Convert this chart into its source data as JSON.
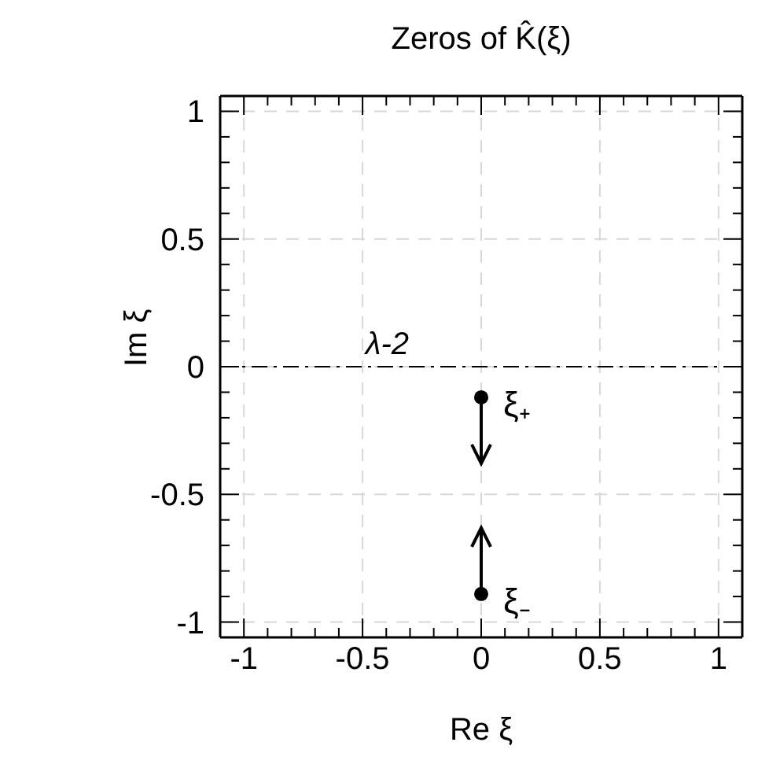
{
  "chart_data": {
    "type": "scatter",
    "title": "Zeros of K̂(ξ)",
    "xlabel": "Re ξ",
    "ylabel": "Im ξ",
    "x": [
      0,
      0
    ],
    "series": [
      {
        "color": "#000000",
        "values": [
          -0.12,
          -0.89
        ]
      }
    ],
    "xlim": [
      -1.1,
      1.1
    ],
    "ylim": [
      -1.06,
      1.06
    ],
    "xticks": [
      -1,
      {
        "value": -0.9,
        "label": null
      },
      {
        "value": -0.8,
        "label": null
      },
      {
        "value": -0.7,
        "label": null
      },
      {
        "value": -0.6,
        "label": null
      },
      -0.5,
      {
        "value": -0.4,
        "label": null
      },
      {
        "value": -0.3,
        "label": null
      },
      {
        "value": -0.2,
        "label": null
      },
      {
        "value": -0.1,
        "label": null
      },
      0,
      {
        "value": 0.1,
        "label": null
      },
      {
        "value": 0.2,
        "label": null
      },
      {
        "value": 0.3,
        "label": null
      },
      {
        "value": 0.4,
        "label": null
      },
      0.5,
      {
        "value": 0.6,
        "label": null
      },
      {
        "value": 0.7,
        "label": null
      },
      {
        "value": 0.8,
        "label": null
      },
      {
        "value": 0.9,
        "label": null
      },
      1
    ],
    "yticks": [
      -1,
      {
        "value": -0.9,
        "label": null
      },
      {
        "value": -0.8,
        "label": null
      },
      {
        "value": -0.7,
        "label": null
      },
      {
        "value": -0.6,
        "label": null
      },
      -0.5,
      {
        "value": -0.4,
        "label": null
      },
      {
        "value": -0.3,
        "label": null
      },
      {
        "value": -0.2,
        "label": null
      },
      {
        "value": -0.1,
        "label": null
      },
      0,
      {
        "value": 0.1,
        "label": null
      },
      {
        "value": 0.2,
        "label": null
      },
      {
        "value": 0.3,
        "label": null
      },
      {
        "value": 0.4,
        "label": null
      },
      0.5,
      {
        "value": 0.6,
        "label": null
      },
      {
        "value": 0.7,
        "label": null
      },
      {
        "value": 0.8,
        "label": null
      },
      {
        "value": 0.9,
        "label": null
      },
      1
    ],
    "ref_lines": [
      {
        "axis": "y",
        "value": 0,
        "label": "λ-2",
        "line_style": "dashdot",
        "color": "#000000"
      }
    ],
    "annotations": [
      {
        "text": "ξ₊",
        "x": 0,
        "y": -0.12
      },
      {
        "text": "ξ₋",
        "x": 0,
        "y": -0.89
      }
    ],
    "grid": true,
    "marker": "circle"
  }
}
